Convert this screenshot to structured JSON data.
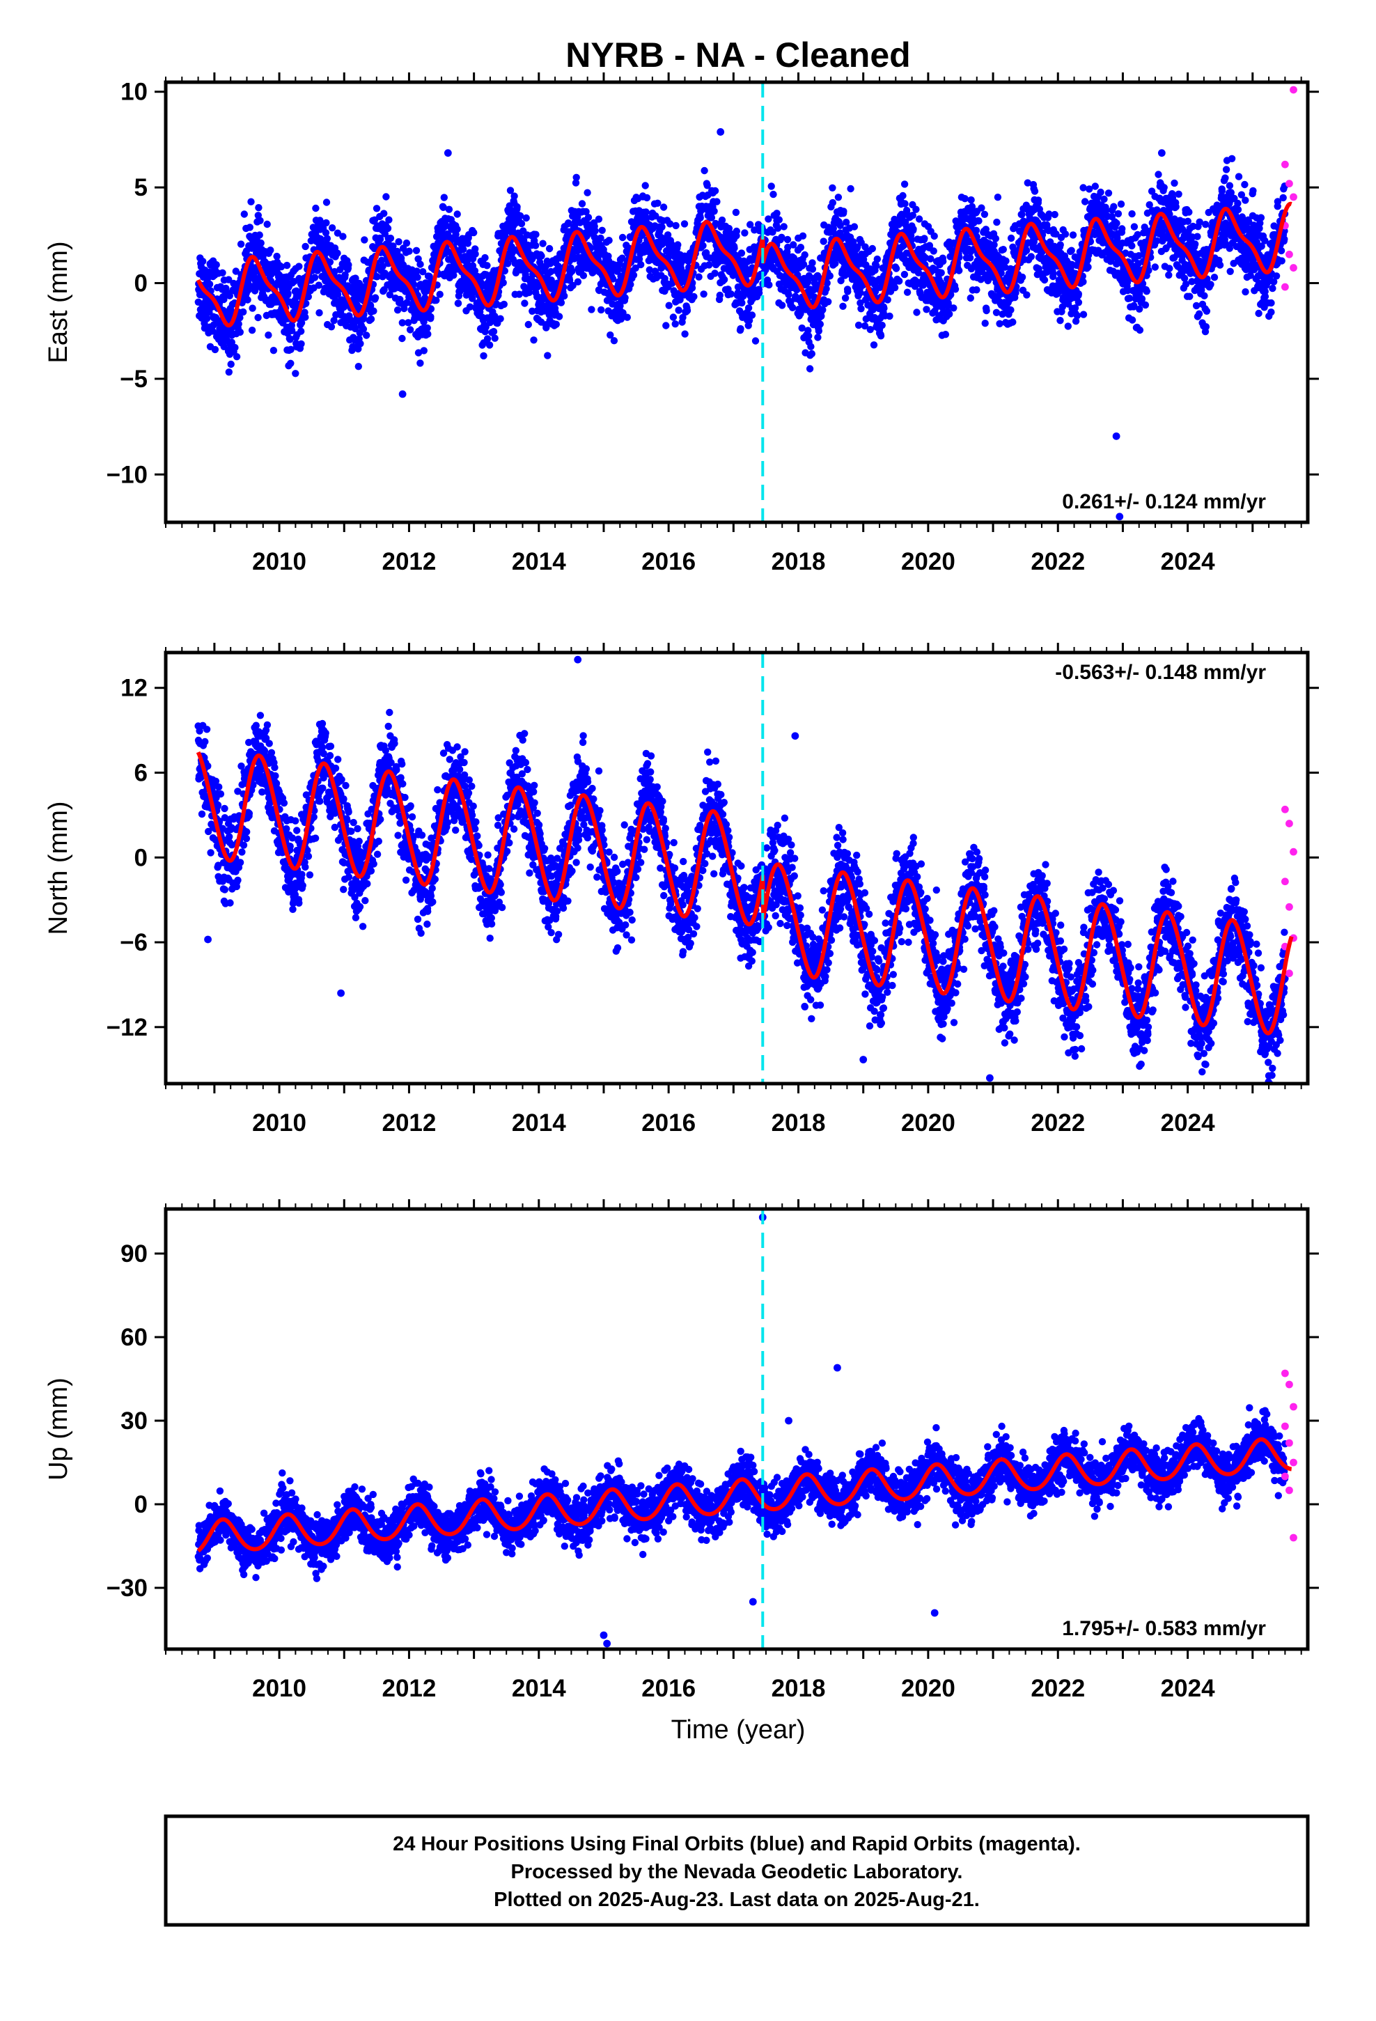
{
  "title": "NYRB  - NA - Cleaned",
  "colors": {
    "final_orbits": "#0000ff",
    "rapid_orbits": "#ff22ee",
    "model_fit": "#ff0000",
    "event_line": "#00e5ee",
    "frame": "#000000"
  },
  "event_line_year": 2017.45,
  "footer": {
    "line1": "24 Hour Positions Using Final Orbits (blue) and Rapid Orbits (magenta).",
    "line2": "Processed by the Nevada Geodetic Laboratory.",
    "line3": "Plotted on 2025-Aug-23. Last data on 2025-Aug-21."
  },
  "chart_data": [
    {
      "type": "scatter",
      "ylabel": "East (mm)",
      "xlabel": "",
      "xlim": [
        2008.25,
        2025.85
      ],
      "ylim": [
        -12.5,
        10.5
      ],
      "xticks": [
        2010,
        2012,
        2014,
        2016,
        2018,
        2020,
        2022,
        2024
      ],
      "yticks": [
        10,
        5,
        0,
        -5,
        -10
      ],
      "ytick_labels": [
        "10",
        "5",
        "0",
        "−5",
        "−10"
      ],
      "rate_label": "0.261+/- 0.124 mm/yr",
      "rate_position": "bottom-right",
      "model": {
        "rate": 0.261,
        "offset": -0.6,
        "amp_annual": 1.5,
        "phase_annual": 3.75,
        "amp_semi": 0.5,
        "phase_semi": 1.2,
        "step_at_event": -1.4
      },
      "scatter_sd": 1.1,
      "series": [
        {
          "name": "Final Orbits",
          "x_range": [
            2008.75,
            2025.5
          ],
          "sampling_per_year": 280
        },
        {
          "name": "Rapid Orbits",
          "x_range": [
            2025.5,
            2025.63
          ],
          "values_sample": [
            6.2,
            5.2,
            4.5,
            3.0,
            1.5,
            0.8,
            -0.2
          ]
        }
      ],
      "outliers": [
        {
          "x": 2016.8,
          "y": 7.9
        },
        {
          "x": 2012.6,
          "y": 6.8
        },
        {
          "x": 2023.6,
          "y": 6.8
        },
        {
          "x": 2022.9,
          "y": -8.0
        },
        {
          "x": 2022.95,
          "y": -12.2
        },
        {
          "x": 2011.9,
          "y": -5.8
        },
        {
          "x": 2025.63,
          "y": 10.1
        }
      ]
    },
    {
      "type": "scatter",
      "ylabel": "North (mm)",
      "xlabel": "",
      "xlim": [
        2008.25,
        2025.85
      ],
      "ylim": [
        -16,
        14.5
      ],
      "xticks": [
        2010,
        2012,
        2014,
        2016,
        2018,
        2020,
        2022,
        2024
      ],
      "yticks": [
        12,
        6,
        0,
        -6,
        -12
      ],
      "ytick_labels": [
        "12",
        "6",
        "0",
        "−6",
        "−12"
      ],
      "rate_label": "-0.563+/- 0.148 mm/yr",
      "rate_position": "top-right",
      "model": {
        "rate": -0.563,
        "offset": 3.9,
        "amp_annual": 3.8,
        "phase_annual": 3.38,
        "amp_semi": 0.3,
        "phase_semi": 0.5,
        "step_at_event": -3.2
      },
      "scatter_sd": 1.5,
      "series": [
        {
          "name": "Final Orbits",
          "x_range": [
            2008.75,
            2025.5
          ],
          "sampling_per_year": 280
        },
        {
          "name": "Rapid Orbits",
          "x_range": [
            2025.5,
            2025.63
          ],
          "values_sample": [
            3.4,
            2.4,
            0.4,
            -1.7,
            -3.5,
            -5.7,
            -6.3,
            -8.2
          ]
        }
      ],
      "outliers": [
        {
          "x": 2014.6,
          "y": 14.0
        },
        {
          "x": 2020.95,
          "y": -15.6
        },
        {
          "x": 2019.0,
          "y": -14.3
        },
        {
          "x": 2010.95,
          "y": -9.6
        },
        {
          "x": 2008.9,
          "y": -5.8
        },
        {
          "x": 2017.95,
          "y": 8.6
        }
      ]
    },
    {
      "type": "scatter",
      "ylabel": "Up (mm)",
      "xlabel": "Time (year)",
      "xlim": [
        2008.25,
        2025.85
      ],
      "ylim": [
        -52,
        106
      ],
      "xticks": [
        2010,
        2012,
        2014,
        2016,
        2018,
        2020,
        2022,
        2024
      ],
      "yticks": [
        90,
        60,
        30,
        0,
        -30
      ],
      "ytick_labels": [
        "90",
        "60",
        "30",
        "0",
        "−30"
      ],
      "rate_label": "1.795+/- 0.583 mm/yr",
      "rate_position": "bottom-right",
      "model": {
        "rate": 1.795,
        "offset": -12.5,
        "amp_annual": 5.8,
        "phase_annual": 0.75,
        "amp_semi": 0.6,
        "phase_semi": 0.0,
        "step_at_event": 0.0
      },
      "scatter_sd": 4.2,
      "series": [
        {
          "name": "Final Orbits",
          "x_range": [
            2008.75,
            2025.5
          ],
          "sampling_per_year": 280
        },
        {
          "name": "Rapid Orbits",
          "x_range": [
            2025.5,
            2025.63
          ],
          "values_sample": [
            47,
            43,
            35,
            28,
            22,
            15,
            10,
            5,
            -12
          ]
        }
      ],
      "outliers": [
        {
          "x": 2017.45,
          "y": 103
        },
        {
          "x": 2018.6,
          "y": 49
        },
        {
          "x": 2017.85,
          "y": 30
        },
        {
          "x": 2015.05,
          "y": -50
        },
        {
          "x": 2015.0,
          "y": -47
        },
        {
          "x": 2020.1,
          "y": -39
        },
        {
          "x": 2017.3,
          "y": -35
        }
      ]
    }
  ]
}
